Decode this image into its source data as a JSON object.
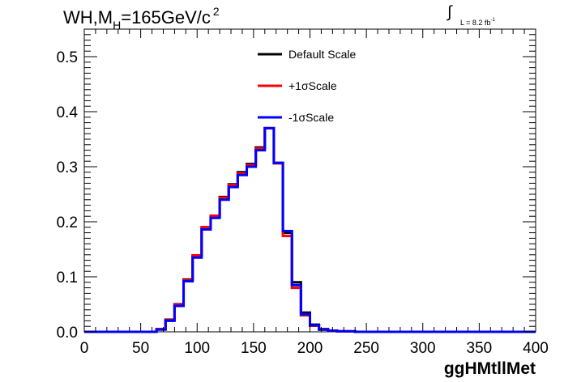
{
  "title": {
    "prefix": "WH,M",
    "subscript": "H",
    "suffix": "=165GeV/c",
    "superscript": "2"
  },
  "luminosity": {
    "symbol": "∫",
    "text": "L = 8.2 fb",
    "superscript": "-1"
  },
  "colors": {
    "default": "#000000",
    "plus": "#ff0000",
    "minus": "#0000ff"
  },
  "chart_data": {
    "type": "line",
    "style": "step-histogram",
    "xlabel": "ggHMtllMet",
    "ylabel": "",
    "xlim": [
      0,
      400
    ],
    "ylim": [
      0,
      0.55
    ],
    "xticks": [
      0,
      50,
      100,
      150,
      200,
      250,
      300,
      350,
      400
    ],
    "yticks": [
      0.0,
      0.1,
      0.2,
      0.3,
      0.4,
      0.5
    ],
    "ytick_labels": [
      "0.0",
      "0.1",
      "0.2",
      "0.3",
      "0.4",
      "0.5"
    ],
    "grid": false,
    "legend_position": "top-center",
    "bin_edges": [
      0,
      8,
      16,
      24,
      32,
      40,
      48,
      56,
      64,
      72,
      80,
      88,
      96,
      104,
      112,
      120,
      128,
      136,
      144,
      152,
      160,
      168,
      176,
      184,
      192,
      200,
      208,
      216,
      224,
      232,
      240,
      248,
      256,
      264,
      272,
      280,
      288,
      296,
      304,
      312,
      320,
      328,
      336,
      344,
      352,
      360,
      368,
      376,
      384,
      392,
      400
    ],
    "series": [
      {
        "name": "Default Scale",
        "color": "#000000",
        "values": [
          0,
          0,
          0,
          0,
          0,
          0,
          0,
          0,
          0.005,
          0.022,
          0.05,
          0.095,
          0.138,
          0.19,
          0.21,
          0.245,
          0.268,
          0.29,
          0.305,
          0.335,
          0.37,
          0.307,
          0.18,
          0.09,
          0.035,
          0.013,
          0.005,
          0.002,
          0.001,
          0.001,
          0,
          0,
          0,
          0,
          0,
          0,
          0,
          0,
          0,
          0,
          0,
          0,
          0,
          0,
          0,
          0,
          0,
          0,
          0,
          0
        ]
      },
      {
        "name": "+1σScale",
        "color": "#ff0000",
        "values": [
          0,
          0,
          0,
          0,
          0,
          0,
          0,
          0,
          0.005,
          0.021,
          0.049,
          0.094,
          0.139,
          0.19,
          0.211,
          0.244,
          0.267,
          0.288,
          0.303,
          0.333,
          0.37,
          0.306,
          0.174,
          0.08,
          0.03,
          0.011,
          0.004,
          0.002,
          0.001,
          0.001,
          0,
          0,
          0,
          0,
          0,
          0,
          0,
          0,
          0,
          0,
          0,
          0,
          0,
          0,
          0,
          0,
          0,
          0,
          0,
          0
        ]
      },
      {
        "name": "-1σScale",
        "color": "#0000ff",
        "values": [
          0,
          0,
          0,
          0,
          0,
          0,
          0,
          0,
          0.004,
          0.02,
          0.047,
          0.092,
          0.135,
          0.186,
          0.207,
          0.24,
          0.263,
          0.285,
          0.3,
          0.33,
          0.37,
          0.307,
          0.183,
          0.085,
          0.032,
          0.012,
          0.004,
          0.002,
          0.001,
          0.001,
          0,
          0,
          0,
          0,
          0,
          0,
          0,
          0,
          0,
          0,
          0,
          0,
          0,
          0,
          0,
          0,
          0,
          0,
          0,
          0
        ]
      }
    ]
  }
}
